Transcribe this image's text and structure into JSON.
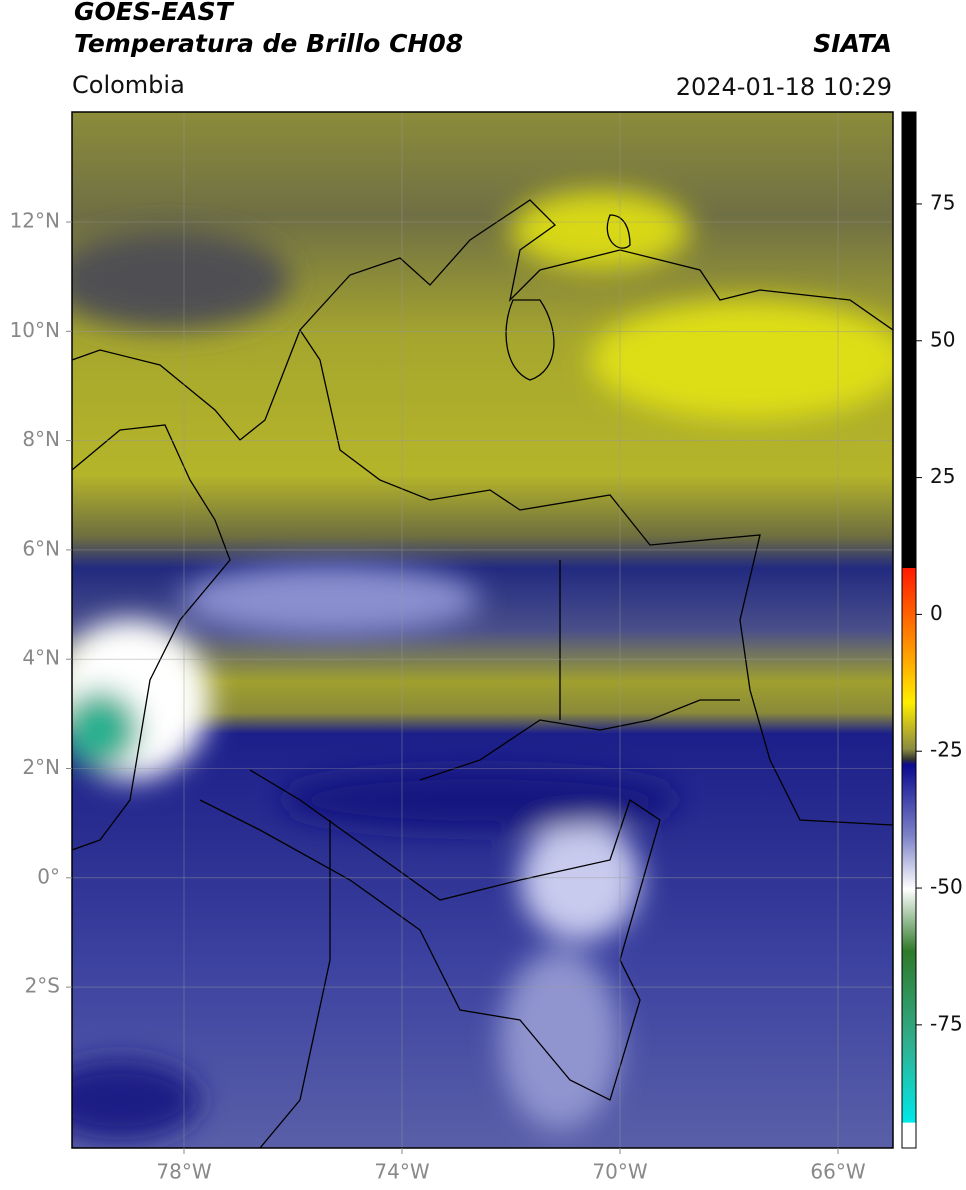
{
  "header": {
    "title_line1": "GOES-EAST",
    "title_line2": "Temperatura de Brillo CH08",
    "region": "Colombia",
    "source": "SIATA",
    "datetime": "2024-01-18 10:29"
  },
  "map": {
    "lat_ticks": [
      "12°N",
      "10°N",
      "8°N",
      "6°N",
      "4°N",
      "2°N",
      "0°",
      "2°S"
    ],
    "lon_ticks": [
      "78°W",
      "74°W",
      "70°W",
      "66°W"
    ]
  },
  "colorbar": {
    "clim": [
      -97.5,
      91.8
    ],
    "ticks": [
      75,
      50,
      25,
      0,
      -25,
      -50,
      -75
    ]
  }
}
